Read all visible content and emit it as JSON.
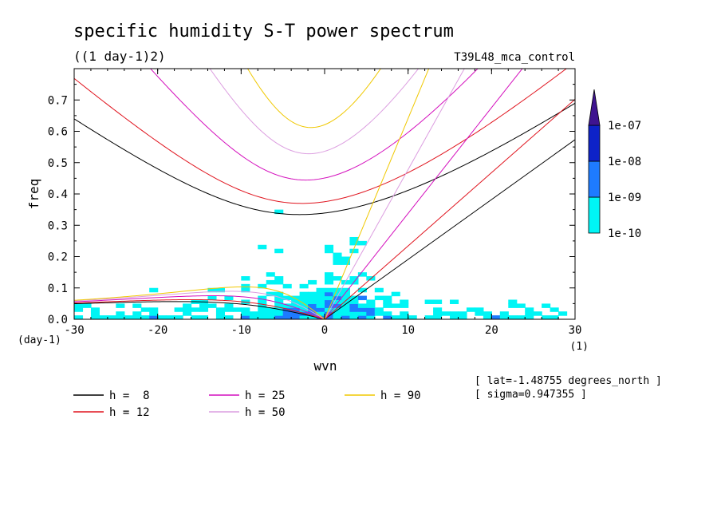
{
  "chart_data": {
    "type": "heatmap",
    "title": "specific humidity S-T power spectrum",
    "subtitle": "((1 day-1)2)",
    "run_label": "T39L48_mca_control",
    "xlabel": "wvn",
    "ylabel": "freq",
    "x_unit": "(1)",
    "y_unit": "(day-1)",
    "xlim": [
      -30,
      30
    ],
    "ylim": [
      0,
      0.8
    ],
    "x_ticks": [
      "-30",
      "-20",
      "-10",
      "0",
      "10",
      "20",
      "30"
    ],
    "y_ticks": [
      "0.0",
      "0.1",
      "0.2",
      "0.3",
      "0.4",
      "0.5",
      "0.6",
      "0.7"
    ],
    "colorbar": {
      "levels": [
        "1e-10",
        "1e-09",
        "1e-08",
        "1e-07"
      ],
      "colors": [
        "#00f5f5",
        "#1e7bff",
        "#0d22c8",
        "#3f1490"
      ]
    },
    "dispersion_curves": [
      {
        "label": "h =  8",
        "h": 8,
        "color": "#000000"
      },
      {
        "label": "h = 12",
        "h": 12,
        "color": "#e0141e"
      },
      {
        "label": "h = 25",
        "h": 25,
        "color": "#d40fbd"
      },
      {
        "label": "h = 50",
        "h": 50,
        "color": "#dc9ee0"
      },
      {
        "label": "h = 90",
        "h": 90,
        "color": "#f0c800"
      }
    ],
    "annotations": [
      "[ lat=-1.48755 degrees_north ]",
      "[ sigma=0.947355 ]"
    ]
  }
}
